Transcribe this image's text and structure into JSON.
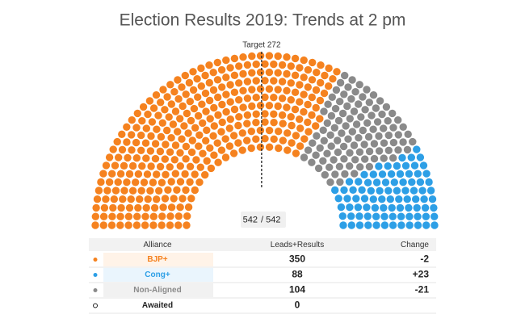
{
  "chart_data": {
    "type": "parliament",
    "title": "Election Results 2019: Trends at 2 pm",
    "target": {
      "value": 272,
      "label": "Target 272"
    },
    "seats_counted": 542,
    "total_seats": {
      "value": 542,
      "label": "/ 542"
    },
    "table_headers": [
      "Alliance",
      "Leads+Results",
      "Change"
    ],
    "categories": [
      "BJP+",
      "Cong+",
      "Non-Aligned",
      "Awaited"
    ],
    "values": [
      350,
      88,
      104,
      0
    ],
    "colors": [
      "#f5821f",
      "#2d9fe6",
      "#8a8a8a",
      "#ffffff"
    ],
    "change": [
      -2,
      {
        "value": 23,
        "label": "+23"
      },
      -21,
      null
    ]
  }
}
